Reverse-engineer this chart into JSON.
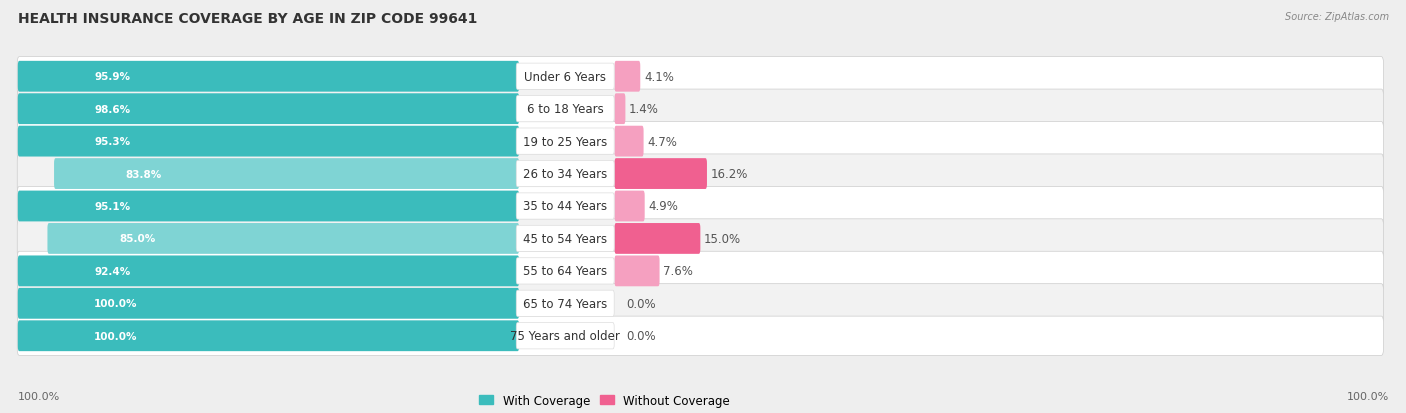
{
  "title": "HEALTH INSURANCE COVERAGE BY AGE IN ZIP CODE 99641",
  "source": "Source: ZipAtlas.com",
  "categories": [
    "Under 6 Years",
    "6 to 18 Years",
    "19 to 25 Years",
    "26 to 34 Years",
    "35 to 44 Years",
    "45 to 54 Years",
    "55 to 64 Years",
    "65 to 74 Years",
    "75 Years and older"
  ],
  "with_coverage": [
    95.9,
    98.6,
    95.3,
    83.8,
    95.1,
    85.0,
    92.4,
    100.0,
    100.0
  ],
  "without_coverage": [
    4.1,
    1.4,
    4.7,
    16.2,
    4.9,
    15.0,
    7.6,
    0.0,
    0.0
  ],
  "color_with": "#3bbcbc",
  "color_with_light": "#7fd4d4",
  "color_without_dark": "#f06090",
  "color_without_light": "#f5a0c0",
  "bg_color": "#eeeeee",
  "row_color_odd": "#ffffff",
  "row_color_even": "#f2f2f2",
  "title_fontsize": 10,
  "bar_label_fontsize": 7.5,
  "cat_label_fontsize": 8.5,
  "value_label_fontsize": 8.5,
  "legend_labels": [
    "With Coverage",
    "Without Coverage"
  ],
  "bottom_left_label": "100.0%",
  "bottom_right_label": "100.0%"
}
